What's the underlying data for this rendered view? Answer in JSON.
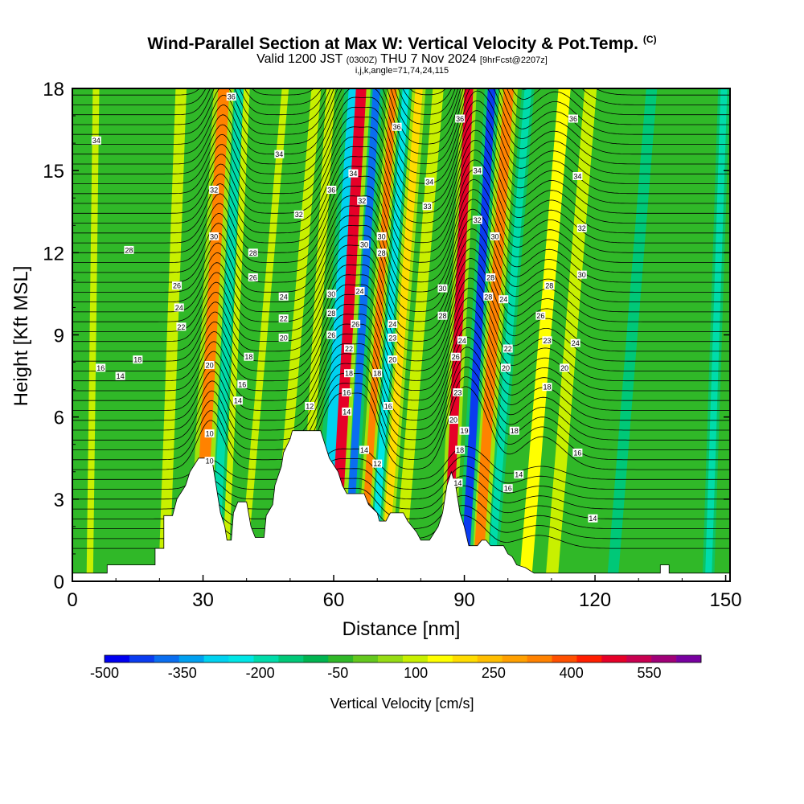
{
  "header": {
    "title": "Wind-Parallel Section at Max W: Vertical Velocity & Pot.Temp.",
    "copyright": "(C)",
    "valid_prefix": "Valid 1200 JST",
    "valid_utc": "(0300Z)",
    "valid_date": "THU 7 Nov 2024",
    "forecast": "[9hrFcst@2207z]",
    "params": "i,j,k,angle=71,74,24,115"
  },
  "chart_data": {
    "type": "heatmap",
    "title": "Wind-Parallel Section at Max W: Vertical Velocity & Pot.Temp.",
    "xlabel": "Distance [nm]",
    "ylabel": "Height [Kft MSL]",
    "xlim": [
      0,
      151
    ],
    "ylim": [
      0,
      18
    ],
    "x_ticks": [
      0,
      30,
      60,
      90,
      120,
      150
    ],
    "x_tick_labels": [
      "0",
      "30",
      "60",
      "90",
      "120",
      "150"
    ],
    "y_ticks": [
      0,
      3,
      6,
      9,
      12,
      15,
      18
    ],
    "y_tick_labels": [
      "0",
      "3",
      "6",
      "9",
      "12",
      "15",
      "18"
    ],
    "colorbar": {
      "label": "Vertical Velocity [cm/s]",
      "min": -500,
      "max": 650,
      "step": 50,
      "tick_values": [
        -500,
        -350,
        -200,
        -50,
        100,
        250,
        400,
        550
      ],
      "tick_labels": [
        "-500",
        "-350",
        "-200",
        "-50",
        "100",
        "250",
        "400",
        "550"
      ],
      "colors": [
        "#0000f0",
        "#0a3cf0",
        "#0a6ef0",
        "#00a0f0",
        "#00d2f0",
        "#00e6e6",
        "#00dcaa",
        "#00c878",
        "#00b450",
        "#30b828",
        "#64c81e",
        "#96dc14",
        "#c8f000",
        "#ffff00",
        "#ffdc00",
        "#ffbe00",
        "#ffa000",
        "#ff8200",
        "#ff5000",
        "#ff1e00",
        "#e60028",
        "#c80050",
        "#a00078",
        "#7800a0"
      ]
    },
    "background_w_cm_s": -15,
    "terrain_kft": [
      [
        0,
        0.3
      ],
      [
        8,
        0.3
      ],
      [
        8,
        0.6
      ],
      [
        19,
        0.6
      ],
      [
        19,
        1.2
      ],
      [
        21,
        1.2
      ],
      [
        21,
        2.4
      ],
      [
        23,
        2.4
      ],
      [
        24,
        3
      ],
      [
        26,
        3.5
      ],
      [
        27,
        4
      ],
      [
        29,
        4.5
      ],
      [
        32,
        4.5
      ],
      [
        33,
        3.5
      ],
      [
        34,
        2.5
      ],
      [
        35,
        2
      ],
      [
        35.5,
        1.5
      ],
      [
        36.5,
        1.5
      ],
      [
        37,
        2.5
      ],
      [
        38,
        2.9
      ],
      [
        40,
        2.9
      ],
      [
        41,
        2
      ],
      [
        42,
        1.6
      ],
      [
        44,
        1.6
      ],
      [
        44.5,
        2.4
      ],
      [
        46,
        2.8
      ],
      [
        46.5,
        3.5
      ],
      [
        48,
        4.2
      ],
      [
        48.5,
        4.7
      ],
      [
        50,
        5.2
      ],
      [
        50.5,
        5.5
      ],
      [
        55,
        5.5
      ],
      [
        57,
        5.5
      ],
      [
        58,
        5
      ],
      [
        59,
        4.5
      ],
      [
        61,
        4
      ],
      [
        62,
        3.5
      ],
      [
        63,
        3.2
      ],
      [
        67,
        3.2
      ],
      [
        68,
        2.8
      ],
      [
        70,
        2.5
      ],
      [
        70.5,
        2.2
      ],
      [
        72,
        2.2
      ],
      [
        73,
        2.5
      ],
      [
        76,
        2.5
      ],
      [
        77,
        2.2
      ],
      [
        78,
        2
      ],
      [
        79,
        1.8
      ],
      [
        80,
        1.5
      ],
      [
        82,
        1.5
      ],
      [
        84,
        2
      ],
      [
        85,
        2.5
      ],
      [
        86,
        3.5
      ],
      [
        87,
        4
      ],
      [
        88,
        3.5
      ],
      [
        89,
        2.5
      ],
      [
        90,
        2
      ],
      [
        91,
        1.3
      ],
      [
        93,
        1.3
      ],
      [
        94,
        1.5
      ],
      [
        95,
        1.5
      ],
      [
        96,
        1.3
      ],
      [
        99,
        1.3
      ],
      [
        100,
        1
      ],
      [
        101,
        0.9
      ],
      [
        102,
        0.6
      ],
      [
        104,
        0.5
      ],
      [
        106,
        0.3
      ],
      [
        135,
        0.3
      ],
      [
        135,
        0.6
      ],
      [
        137,
        0.6
      ],
      [
        137,
        0.3
      ],
      [
        151,
        0.3
      ]
    ],
    "w_bands": [
      {
        "x0": 4,
        "slope": 0.08,
        "width": 1.5,
        "w": 100
      },
      {
        "x0": 21,
        "slope": 0.22,
        "width": 2.5,
        "w": 100
      },
      {
        "x0": 29,
        "slope": 0.32,
        "width": 2.6,
        "w": 350
      },
      {
        "x0": 32.6,
        "slope": 0.32,
        "width": 1.8,
        "w": -200
      },
      {
        "x0": 35,
        "slope": 0.28,
        "width": 1.4,
        "w": 100
      },
      {
        "x0": 39,
        "slope": 0.55,
        "width": 1.6,
        "w": 100
      },
      {
        "x0": 47,
        "slope": 0.5,
        "width": 2.2,
        "w": 100
      },
      {
        "x0": 53,
        "slope": 0.35,
        "width": 2,
        "w": 100
      },
      {
        "x0": 57.5,
        "slope": 0.4,
        "width": 2.5,
        "w": -300
      },
      {
        "x0": 60,
        "slope": 0.35,
        "width": 2.4,
        "w": 500
      },
      {
        "x0": 63,
        "slope": 0.38,
        "width": 1.7,
        "w": -400
      },
      {
        "x0": 66.5,
        "slope": 0.4,
        "width": 1.6,
        "w": 350
      },
      {
        "x0": 69,
        "slope": 0.42,
        "width": 1.5,
        "w": -250
      },
      {
        "x0": 71.5,
        "slope": 0.45,
        "width": 1.7,
        "w": 200
      },
      {
        "x0": 75,
        "slope": 0.5,
        "width": 2.5,
        "w": 100
      },
      {
        "x0": 86,
        "slope": 0.28,
        "width": 2,
        "w": 500
      },
      {
        "x0": 90,
        "slope": 0.35,
        "width": 1.8,
        "w": -450
      },
      {
        "x0": 93,
        "slope": 0.4,
        "width": 2.3,
        "w": 350
      },
      {
        "x0": 96,
        "slope": 0.48,
        "width": 1.6,
        "w": -200
      },
      {
        "x0": 104,
        "slope": 0.5,
        "width": 2.8,
        "w": 150
      },
      {
        "x0": 110,
        "slope": 0.5,
        "width": 2.8,
        "w": 100
      },
      {
        "x0": 124,
        "slope": 0.5,
        "width": 2.5,
        "w": -150
      },
      {
        "x0": 146,
        "slope": 0.2,
        "width": 1.5,
        "w": -200
      }
    ],
    "theta_contours": {
      "variable": "Potential temperature (C)",
      "interval": 1,
      "labels": [
        {
          "x": 5.5,
          "y": 16.1,
          "text": "34"
        },
        {
          "x": 36.5,
          "y": 17.7,
          "text": "36"
        },
        {
          "x": 47.5,
          "y": 15.6,
          "text": "34"
        },
        {
          "x": 52,
          "y": 13.4,
          "text": "32"
        },
        {
          "x": 32.5,
          "y": 14.3,
          "text": "32"
        },
        {
          "x": 32.5,
          "y": 12.6,
          "text": "30"
        },
        {
          "x": 13,
          "y": 12.1,
          "text": "28"
        },
        {
          "x": 41.5,
          "y": 12,
          "text": "28"
        },
        {
          "x": 41.5,
          "y": 11.1,
          "text": "26"
        },
        {
          "x": 24,
          "y": 10.8,
          "text": "26"
        },
        {
          "x": 24.5,
          "y": 10,
          "text": "24"
        },
        {
          "x": 48.5,
          "y": 10.4,
          "text": "24"
        },
        {
          "x": 25,
          "y": 9.3,
          "text": "22"
        },
        {
          "x": 48.5,
          "y": 9.6,
          "text": "22"
        },
        {
          "x": 48.5,
          "y": 8.9,
          "text": "20"
        },
        {
          "x": 15,
          "y": 8.1,
          "text": "18"
        },
        {
          "x": 31.5,
          "y": 7.9,
          "text": "20"
        },
        {
          "x": 40.5,
          "y": 8.2,
          "text": "18"
        },
        {
          "x": 6.5,
          "y": 7.8,
          "text": "16"
        },
        {
          "x": 11,
          "y": 7.5,
          "text": "14"
        },
        {
          "x": 39,
          "y": 7.2,
          "text": "16"
        },
        {
          "x": 38,
          "y": 6.6,
          "text": "14"
        },
        {
          "x": 54.5,
          "y": 6.4,
          "text": "12"
        },
        {
          "x": 31.5,
          "y": 5.4,
          "text": "10"
        },
        {
          "x": 31.5,
          "y": 4.4,
          "text": "10"
        },
        {
          "x": 59.5,
          "y": 14.3,
          "text": "36"
        },
        {
          "x": 64.5,
          "y": 14.9,
          "text": "34"
        },
        {
          "x": 66.5,
          "y": 13.9,
          "text": "32"
        },
        {
          "x": 67,
          "y": 12.3,
          "text": "30"
        },
        {
          "x": 71,
          "y": 12.6,
          "text": "30"
        },
        {
          "x": 71,
          "y": 12,
          "text": "28"
        },
        {
          "x": 59.5,
          "y": 10.5,
          "text": "30"
        },
        {
          "x": 59.5,
          "y": 9.8,
          "text": "28"
        },
        {
          "x": 59.5,
          "y": 9,
          "text": "26"
        },
        {
          "x": 66,
          "y": 10.6,
          "text": "24"
        },
        {
          "x": 65,
          "y": 9.4,
          "text": "26"
        },
        {
          "x": 63.5,
          "y": 8.5,
          "text": "22"
        },
        {
          "x": 63.5,
          "y": 7.6,
          "text": "18"
        },
        {
          "x": 63,
          "y": 6.9,
          "text": "16"
        },
        {
          "x": 63,
          "y": 6.2,
          "text": "14"
        },
        {
          "x": 67,
          "y": 4.8,
          "text": "14"
        },
        {
          "x": 70,
          "y": 4.3,
          "text": "12"
        },
        {
          "x": 70,
          "y": 7.6,
          "text": "18"
        },
        {
          "x": 72.5,
          "y": 6.4,
          "text": "16"
        },
        {
          "x": 73.5,
          "y": 8.1,
          "text": "20"
        },
        {
          "x": 73.5,
          "y": 8.9,
          "text": "23"
        },
        {
          "x": 73.5,
          "y": 9.4,
          "text": "24"
        },
        {
          "x": 74.5,
          "y": 16.6,
          "text": "36"
        },
        {
          "x": 82,
          "y": 14.6,
          "text": "34"
        },
        {
          "x": 81.5,
          "y": 13.7,
          "text": "33"
        },
        {
          "x": 85,
          "y": 10.7,
          "text": "30"
        },
        {
          "x": 85,
          "y": 9.7,
          "text": "28"
        },
        {
          "x": 89,
          "y": 16.9,
          "text": "36"
        },
        {
          "x": 93,
          "y": 15,
          "text": "34"
        },
        {
          "x": 93,
          "y": 13.2,
          "text": "32"
        },
        {
          "x": 97,
          "y": 12.6,
          "text": "30"
        },
        {
          "x": 96,
          "y": 11.1,
          "text": "28"
        },
        {
          "x": 95.5,
          "y": 10.4,
          "text": "28"
        },
        {
          "x": 99,
          "y": 10.3,
          "text": "24"
        },
        {
          "x": 89.5,
          "y": 8.8,
          "text": "24"
        },
        {
          "x": 88,
          "y": 8.2,
          "text": "26"
        },
        {
          "x": 88.5,
          "y": 6.9,
          "text": "23"
        },
        {
          "x": 87.5,
          "y": 5.9,
          "text": "20"
        },
        {
          "x": 90,
          "y": 5.5,
          "text": "19"
        },
        {
          "x": 89,
          "y": 4.8,
          "text": "18"
        },
        {
          "x": 88.5,
          "y": 3.6,
          "text": "14"
        },
        {
          "x": 100,
          "y": 8.5,
          "text": "22"
        },
        {
          "x": 99.5,
          "y": 7.8,
          "text": "20"
        },
        {
          "x": 101.5,
          "y": 5.5,
          "text": "18"
        },
        {
          "x": 102.5,
          "y": 3.9,
          "text": "14"
        },
        {
          "x": 100,
          "y": 3.4,
          "text": "16"
        },
        {
          "x": 115,
          "y": 16.9,
          "text": "36"
        },
        {
          "x": 116,
          "y": 14.8,
          "text": "34"
        },
        {
          "x": 117,
          "y": 12.9,
          "text": "32"
        },
        {
          "x": 117,
          "y": 11.2,
          "text": "30"
        },
        {
          "x": 109.5,
          "y": 10.8,
          "text": "28"
        },
        {
          "x": 107.5,
          "y": 9.7,
          "text": "26"
        },
        {
          "x": 109,
          "y": 8.8,
          "text": "23"
        },
        {
          "x": 115.5,
          "y": 8.7,
          "text": "24"
        },
        {
          "x": 113,
          "y": 7.8,
          "text": "20"
        },
        {
          "x": 109,
          "y": 7.1,
          "text": "18"
        },
        {
          "x": 116,
          "y": 4.7,
          "text": "16"
        },
        {
          "x": 119.5,
          "y": 2.3,
          "text": "14"
        }
      ]
    },
    "grid": false,
    "legend": "bottom colorbar"
  }
}
